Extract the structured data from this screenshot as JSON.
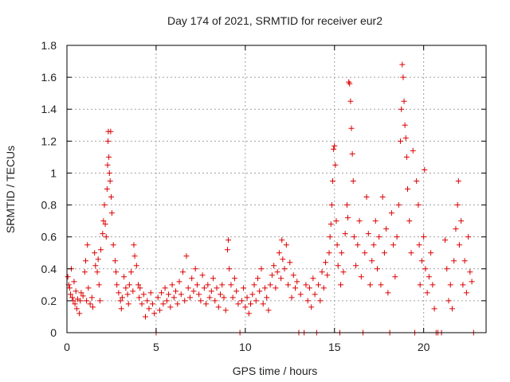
{
  "chart_data": {
    "type": "scatter",
    "title": "Day 174 of 2021, SRMTID for receiver eur2",
    "xlabel": "GPS time / hours",
    "ylabel": "SRMTID / TECUs",
    "xlim": [
      0,
      23.5
    ],
    "ylim": [
      0,
      1.8
    ],
    "x_ticks": [
      0,
      5,
      10,
      15,
      20
    ],
    "x_tick_labels": [
      "0",
      "5",
      "10",
      "15",
      "20"
    ],
    "y_ticks": [
      0,
      0.2,
      0.4,
      0.6,
      0.8,
      1.0,
      1.2,
      1.4,
      1.6,
      1.8
    ],
    "y_tick_labels": [
      "0",
      "0.2",
      "0.4",
      "0.6",
      "0.8",
      "1",
      "1.2",
      "1.4",
      "1.6",
      "1.8"
    ],
    "grid": true,
    "marker": "+",
    "color": "#dd0000",
    "series": [
      {
        "name": "SRMTID",
        "points": [
          [
            0.05,
            0.35
          ],
          [
            0.1,
            0.3
          ],
          [
            0.15,
            0.28
          ],
          [
            0.2,
            0.24
          ],
          [
            0.25,
            0.4
          ],
          [
            0.3,
            0.22
          ],
          [
            0.35,
            0.2
          ],
          [
            0.4,
            0.32
          ],
          [
            0.45,
            0.18
          ],
          [
            0.5,
            0.26
          ],
          [
            0.55,
            0.15
          ],
          [
            0.6,
            0.21
          ],
          [
            0.7,
            0.12
          ],
          [
            0.75,
            0.2
          ],
          [
            0.8,
            0.25
          ],
          [
            0.9,
            0.23
          ],
          [
            1.0,
            0.38
          ],
          [
            1.05,
            0.45
          ],
          [
            1.1,
            0.2
          ],
          [
            1.15,
            0.55
          ],
          [
            1.2,
            0.28
          ],
          [
            1.3,
            0.18
          ],
          [
            1.4,
            0.22
          ],
          [
            1.45,
            0.16
          ],
          [
            1.55,
            0.5
          ],
          [
            1.6,
            0.42
          ],
          [
            1.7,
            0.38
          ],
          [
            1.75,
            0.46
          ],
          [
            1.8,
            0.3
          ],
          [
            1.85,
            0.2
          ],
          [
            1.9,
            0.52
          ],
          [
            2.0,
            0.62
          ],
          [
            2.05,
            0.7
          ],
          [
            2.1,
            0.8
          ],
          [
            2.15,
            0.68
          ],
          [
            2.2,
            0.6
          ],
          [
            2.25,
            0.9
          ],
          [
            2.28,
            1.05
          ],
          [
            2.3,
            1.2
          ],
          [
            2.32,
            1.26
          ],
          [
            2.35,
            1.1
          ],
          [
            2.38,
            1.0
          ],
          [
            2.42,
            0.95
          ],
          [
            2.45,
            1.26
          ],
          [
            2.48,
            0.85
          ],
          [
            2.52,
            0.75
          ],
          [
            2.6,
            0.55
          ],
          [
            2.7,
            0.45
          ],
          [
            2.75,
            0.38
          ],
          [
            2.8,
            0.3
          ],
          [
            2.9,
            0.25
          ],
          [
            3.0,
            0.2
          ],
          [
            3.05,
            0.15
          ],
          [
            3.1,
            0.22
          ],
          [
            3.2,
            0.35
          ],
          [
            3.3,
            0.28
          ],
          [
            3.4,
            0.24
          ],
          [
            3.45,
            0.18
          ],
          [
            3.5,
            0.3
          ],
          [
            3.6,
            0.38
          ],
          [
            3.7,
            0.26
          ],
          [
            3.75,
            0.55
          ],
          [
            3.8,
            0.48
          ],
          [
            3.9,
            0.42
          ],
          [
            4.0,
            0.3
          ],
          [
            4.05,
            0.22
          ],
          [
            4.1,
            0.28
          ],
          [
            4.2,
            0.18
          ],
          [
            4.3,
            0.24
          ],
          [
            4.4,
            0.1
          ],
          [
            4.5,
            0.2
          ],
          [
            4.6,
            0.15
          ],
          [
            4.7,
            0.25
          ],
          [
            4.8,
            0.18
          ],
          [
            4.9,
            0.12
          ],
          [
            5.0,
            0.0
          ],
          [
            5.1,
            0.22
          ],
          [
            5.2,
            0.14
          ],
          [
            5.3,
            0.25
          ],
          [
            5.4,
            0.18
          ],
          [
            5.5,
            0.28
          ],
          [
            5.6,
            0.2
          ],
          [
            5.7,
            0.24
          ],
          [
            5.8,
            0.16
          ],
          [
            5.9,
            0.3
          ],
          [
            6.0,
            0.22
          ],
          [
            6.1,
            0.26
          ],
          [
            6.2,
            0.18
          ],
          [
            6.3,
            0.32
          ],
          [
            6.4,
            0.24
          ],
          [
            6.5,
            0.38
          ],
          [
            6.6,
            0.2
          ],
          [
            6.7,
            0.48
          ],
          [
            6.8,
            0.28
          ],
          [
            6.9,
            0.22
          ],
          [
            7.0,
            0.34
          ],
          [
            7.1,
            0.26
          ],
          [
            7.2,
            0.4
          ],
          [
            7.3,
            0.3
          ],
          [
            7.4,
            0.24
          ],
          [
            7.5,
            0.2
          ],
          [
            7.6,
            0.36
          ],
          [
            7.7,
            0.28
          ],
          [
            7.8,
            0.18
          ],
          [
            7.9,
            0.3
          ],
          [
            8.0,
            0.22
          ],
          [
            8.1,
            0.26
          ],
          [
            8.2,
            0.34
          ],
          [
            8.3,
            0.2
          ],
          [
            8.4,
            0.28
          ],
          [
            8.5,
            0.16
          ],
          [
            8.6,
            0.24
          ],
          [
            8.7,
            0.3
          ],
          [
            8.8,
            0.22
          ],
          [
            8.9,
            0.14
          ],
          [
            9.0,
            0.52
          ],
          [
            9.05,
            0.58
          ],
          [
            9.1,
            0.4
          ],
          [
            9.2,
            0.3
          ],
          [
            9.3,
            0.22
          ],
          [
            9.4,
            0.34
          ],
          [
            9.5,
            0.26
          ],
          [
            9.6,
            0.18
          ],
          [
            9.7,
            0.0
          ],
          [
            9.8,
            0.2
          ],
          [
            9.9,
            0.28
          ],
          [
            10.0,
            0.16
          ],
          [
            10.1,
            0.22
          ],
          [
            10.2,
            0.12
          ],
          [
            10.3,
            0.18
          ],
          [
            10.4,
            0.24
          ],
          [
            10.5,
            0.3
          ],
          [
            10.6,
            0.2
          ],
          [
            10.7,
            0.34
          ],
          [
            10.8,
            0.26
          ],
          [
            10.9,
            0.4
          ],
          [
            11.0,
            0.18
          ],
          [
            11.1,
            0.28
          ],
          [
            11.2,
            0.22
          ],
          [
            11.3,
            0.14
          ],
          [
            11.4,
            0.3
          ],
          [
            11.5,
            0.36
          ],
          [
            11.6,
            0.42
          ],
          [
            11.7,
            0.28
          ],
          [
            11.8,
            0.38
          ],
          [
            11.9,
            0.5
          ],
          [
            12.0,
            0.34
          ],
          [
            12.05,
            0.58
          ],
          [
            12.1,
            0.46
          ],
          [
            12.2,
            0.4
          ],
          [
            12.3,
            0.55
          ],
          [
            12.4,
            0.3
          ],
          [
            12.5,
            0.44
          ],
          [
            12.6,
            0.22
          ],
          [
            12.7,
            0.36
          ],
          [
            12.8,
            0.28
          ],
          [
            12.9,
            0.32
          ],
          [
            13.0,
            0.0
          ],
          [
            13.1,
            0.24
          ],
          [
            13.3,
            0.0
          ],
          [
            13.4,
            0.3
          ],
          [
            13.5,
            0.2
          ],
          [
            13.6,
            0.28
          ],
          [
            13.7,
            0.16
          ],
          [
            13.8,
            0.34
          ],
          [
            13.9,
            0.24
          ],
          [
            14.0,
            0.0
          ],
          [
            14.1,
            0.3
          ],
          [
            14.2,
            0.2
          ],
          [
            14.3,
            0.38
          ],
          [
            14.4,
            0.28
          ],
          [
            14.5,
            0.44
          ],
          [
            14.6,
            0.36
          ],
          [
            14.7,
            0.5
          ],
          [
            14.75,
            0.6
          ],
          [
            14.8,
            0.68
          ],
          [
            14.85,
            0.8
          ],
          [
            14.9,
            0.95
          ],
          [
            14.95,
            1.15
          ],
          [
            15.0,
            1.17
          ],
          [
            15.05,
            1.05
          ],
          [
            15.1,
            0.7
          ],
          [
            15.15,
            0.55
          ],
          [
            15.2,
            0.42
          ],
          [
            15.3,
            0.0
          ],
          [
            15.35,
            0.3
          ],
          [
            15.4,
            0.5
          ],
          [
            15.5,
            0.38
          ],
          [
            15.6,
            0.62
          ],
          [
            15.7,
            0.8
          ],
          [
            15.75,
            0.72
          ],
          [
            15.8,
            1.57
          ],
          [
            15.85,
            1.56
          ],
          [
            15.9,
            1.45
          ],
          [
            15.95,
            1.28
          ],
          [
            16.0,
            1.12
          ],
          [
            16.05,
            0.95
          ],
          [
            16.1,
            0.6
          ],
          [
            16.2,
            0.42
          ],
          [
            16.3,
            0.55
          ],
          [
            16.4,
            0.7
          ],
          [
            16.5,
            0.35
          ],
          [
            16.6,
            0.0
          ],
          [
            16.7,
            0.5
          ],
          [
            16.8,
            0.85
          ],
          [
            16.9,
            0.62
          ],
          [
            17.0,
            0.3
          ],
          [
            17.1,
            0.45
          ],
          [
            17.2,
            0.55
          ],
          [
            17.3,
            0.7
          ],
          [
            17.4,
            0.4
          ],
          [
            17.5,
            0.6
          ],
          [
            17.6,
            0.3
          ],
          [
            17.7,
            0.85
          ],
          [
            17.8,
            0.5
          ],
          [
            17.9,
            0.65
          ],
          [
            18.0,
            0.25
          ],
          [
            18.1,
            0.0
          ],
          [
            18.2,
            0.75
          ],
          [
            18.3,
            0.55
          ],
          [
            18.4,
            0.35
          ],
          [
            18.5,
            0.6
          ],
          [
            18.6,
            0.8
          ],
          [
            18.7,
            1.2
          ],
          [
            18.75,
            1.4
          ],
          [
            18.8,
            1.68
          ],
          [
            18.85,
            1.6
          ],
          [
            18.9,
            1.45
          ],
          [
            18.95,
            1.3
          ],
          [
            19.0,
            1.22
          ],
          [
            19.05,
            1.1
          ],
          [
            19.1,
            0.9
          ],
          [
            19.2,
            0.7
          ],
          [
            19.3,
            0.5
          ],
          [
            19.4,
            1.14
          ],
          [
            19.5,
            0.0
          ],
          [
            19.6,
            0.95
          ],
          [
            19.7,
            0.8
          ],
          [
            19.75,
            0.55
          ],
          [
            19.8,
            0.3
          ],
          [
            19.9,
            0.45
          ],
          [
            20.0,
            0.6
          ],
          [
            20.05,
            1.02
          ],
          [
            20.1,
            0.4
          ],
          [
            20.2,
            0.25
          ],
          [
            20.3,
            0.35
          ],
          [
            20.4,
            0.5
          ],
          [
            20.5,
            0.3
          ],
          [
            20.6,
            0.15
          ],
          [
            20.7,
            0.0
          ],
          [
            20.8,
            0.0
          ],
          [
            21.0,
            0.0
          ],
          [
            21.2,
            0.58
          ],
          [
            21.3,
            0.4
          ],
          [
            21.4,
            0.2
          ],
          [
            21.5,
            0.3
          ],
          [
            21.6,
            0.15
          ],
          [
            21.7,
            0.45
          ],
          [
            21.8,
            0.65
          ],
          [
            21.9,
            0.8
          ],
          [
            21.95,
            0.95
          ],
          [
            22.0,
            0.55
          ],
          [
            22.1,
            0.7
          ],
          [
            22.2,
            0.3
          ],
          [
            22.3,
            0.45
          ],
          [
            22.4,
            0.25
          ],
          [
            22.5,
            0.6
          ],
          [
            22.6,
            0.38
          ],
          [
            22.7,
            0.32
          ],
          [
            22.8,
            0.0
          ]
        ]
      }
    ]
  }
}
